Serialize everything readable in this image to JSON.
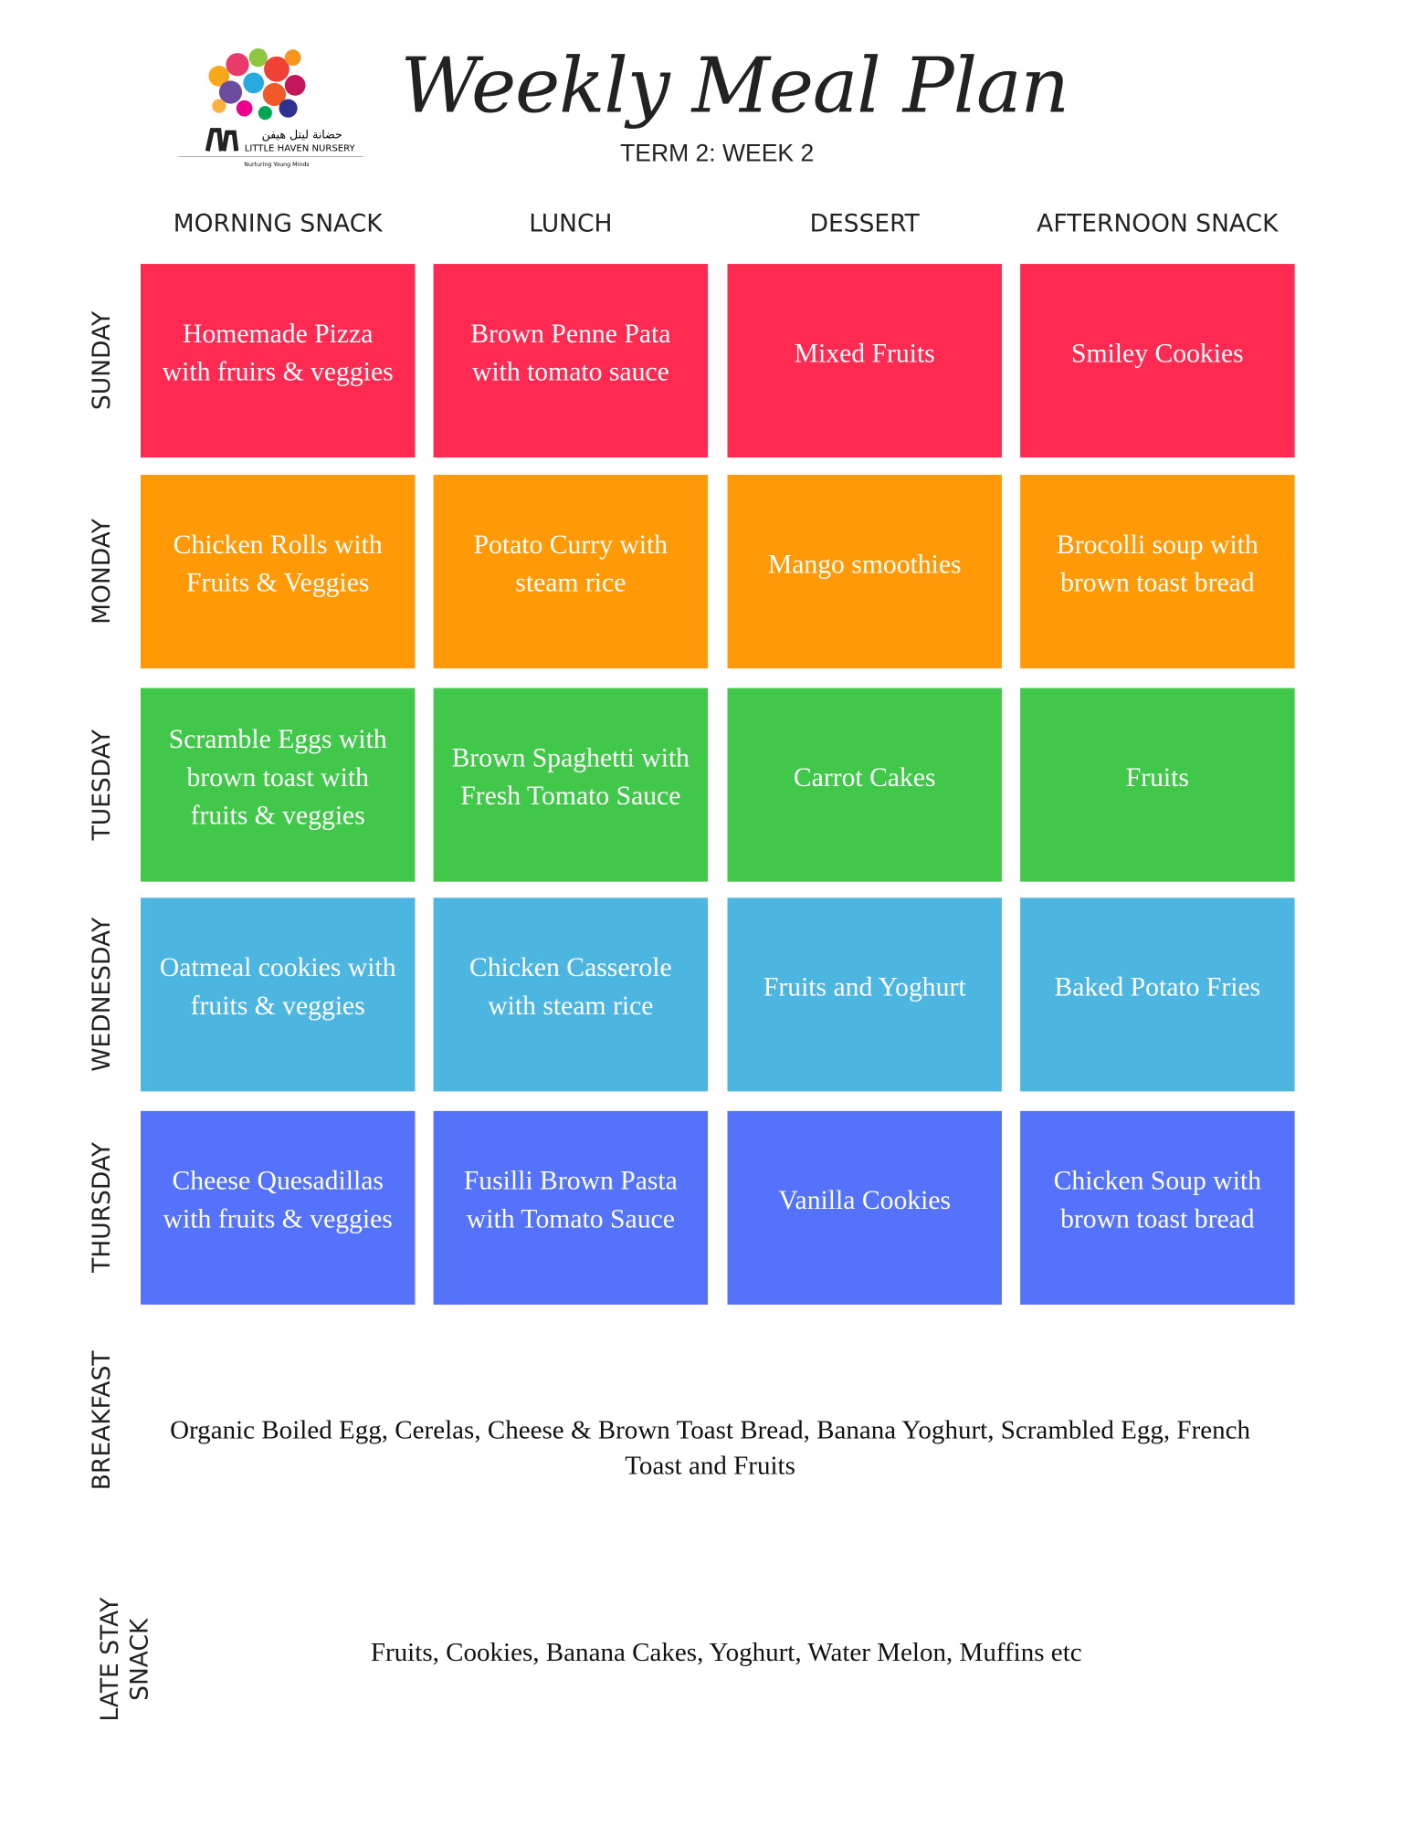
{
  "header": {
    "title": "Weekly Meal Plan",
    "subtitle": "TERM 2:  WEEK 2"
  },
  "logo": {
    "arabic": "حضانة ليتل هيفن",
    "name": "LITTLE HAVEN NURSERY",
    "tagline": "Nurturing Young Minds"
  },
  "columns": [
    "MORNING SNACK",
    "LUNCH",
    "DESSERT",
    "AFTERNOON SNACK"
  ],
  "rows": [
    {
      "day": "SUNDAY",
      "color": "#ff2a52",
      "meals": [
        "Homemade Pizza with fruirs & veggies",
        "Brown Penne Pata with tomato sauce",
        "Mixed Fruits",
        "Smiley Cookies"
      ]
    },
    {
      "day": "MONDAY",
      "color": "#ff9a06",
      "meals": [
        "Chicken Rolls with Fruits & Veggies",
        "Potato Curry with steam rice",
        "Mango smoothies",
        "Brocolli soup with brown toast bread"
      ]
    },
    {
      "day": "TUESDAY",
      "color": "#41c84a",
      "meals": [
        "Scramble Eggs with brown toast with fruits & veggies",
        "Brown Spaghetti with Fresh Tomato Sauce",
        "Carrot Cakes",
        "Fruits"
      ]
    },
    {
      "day": "WEDNESDAY",
      "color": "#4db6e0",
      "meals": [
        "Oatmeal cookies with fruits & veggies",
        "Chicken Casserole with steam rice",
        "Fruits and Yoghurt",
        "Baked Potato Fries"
      ]
    },
    {
      "day": "THURSDAY",
      "color": "#5472fa",
      "meals": [
        "Cheese Quesadillas with fruits & veggies",
        "Fusilli Brown Pasta with Tomato Sauce",
        "Vanilla Cookies",
        "Chicken Soup with brown toast bread"
      ]
    }
  ],
  "extras": [
    {
      "label": [
        "BREAKFAST"
      ],
      "text": "Organic Boiled Egg, Cerelas, Cheese & Brown Toast Bread, Banana Yoghurt, Scrambled Egg, French Toast and Fruits"
    },
    {
      "label": [
        "LATE STAY",
        "SNACK"
      ],
      "text": "Fruits, Cookies, Banana Cakes, Yoghurt, Water Melon, Muffins etc"
    }
  ]
}
